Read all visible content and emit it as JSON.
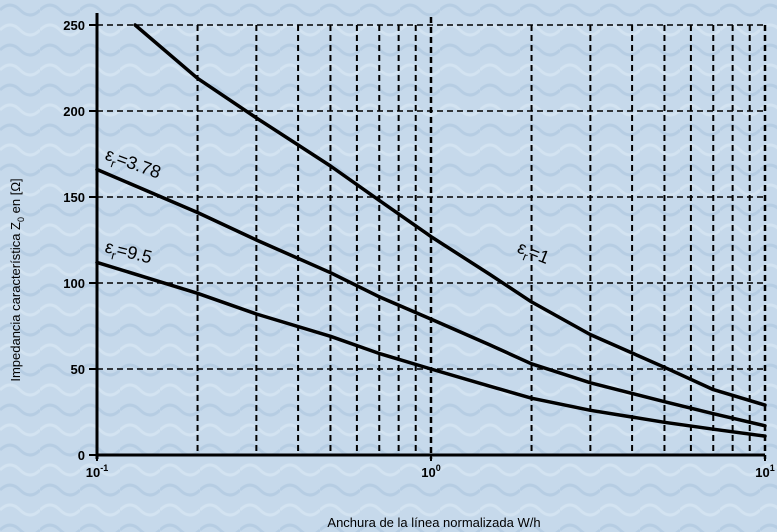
{
  "chart_data": {
    "type": "line",
    "title": "",
    "xlabel": "Anchura de la línea normalizada W/h",
    "ylabel_main": "Impedancia característica Z",
    "ylabel_sub": "0",
    "ylabel_tail": " en [Ω]",
    "x_scale": "log",
    "xlim": [
      0.1,
      10
    ],
    "ylim": [
      0,
      250
    ],
    "x_ticks": [
      {
        "value": 0.1,
        "base": "10",
        "exp": "-1"
      },
      {
        "value": 1,
        "base": "10",
        "exp": "0"
      },
      {
        "value": 10,
        "base": "10",
        "exp": "1"
      }
    ],
    "y_ticks": [
      0,
      50,
      100,
      150,
      200,
      250
    ],
    "grid": true,
    "series": [
      {
        "name_base": "ε",
        "name_sub": "r",
        "name_tail": "=1",
        "color": "#000000",
        "points": [
          [
            0.13,
            250
          ],
          [
            0.2,
            219
          ],
          [
            0.3,
            196
          ],
          [
            0.5,
            168
          ],
          [
            0.7,
            148
          ],
          [
            1,
            127
          ],
          [
            1.5,
            105
          ],
          [
            2,
            89
          ],
          [
            3,
            70
          ],
          [
            5,
            51
          ],
          [
            7,
            38
          ],
          [
            10,
            29
          ]
        ]
      },
      {
        "name_base": "ε",
        "name_sub": "r",
        "name_tail": "=3.78",
        "color": "#000000",
        "points": [
          [
            0.1,
            166
          ],
          [
            0.2,
            141
          ],
          [
            0.3,
            125
          ],
          [
            0.5,
            106
          ],
          [
            0.7,
            92
          ],
          [
            1,
            79
          ],
          [
            1.5,
            64
          ],
          [
            2,
            53
          ],
          [
            3,
            42
          ],
          [
            5,
            31
          ],
          [
            7,
            24
          ],
          [
            10,
            17
          ]
        ]
      },
      {
        "name_base": "ε",
        "name_sub": "r",
        "name_tail": "=9.5",
        "color": "#000000",
        "points": [
          [
            0.1,
            112
          ],
          [
            0.2,
            94
          ],
          [
            0.3,
            82
          ],
          [
            0.5,
            69
          ],
          [
            0.7,
            59
          ],
          [
            1,
            50
          ],
          [
            1.5,
            40
          ],
          [
            2,
            33
          ],
          [
            3,
            26
          ],
          [
            5,
            19
          ],
          [
            7,
            15
          ],
          [
            10,
            11
          ]
        ]
      }
    ]
  }
}
